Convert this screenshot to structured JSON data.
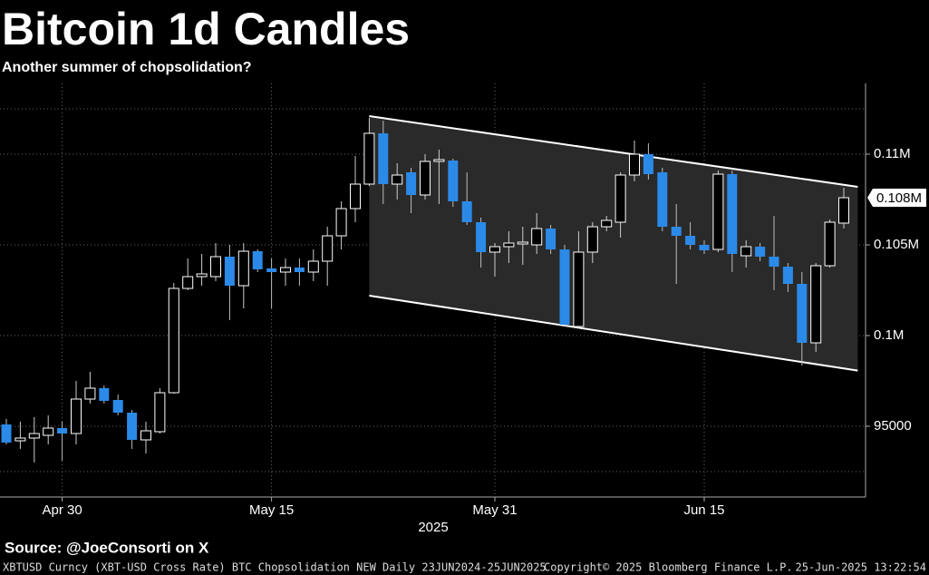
{
  "chart_data": {
    "type": "candlestick",
    "title": "Bitcoin 1d Candles",
    "subtitle": "Another summer of chopsolidation?",
    "xlabel": "2025",
    "source": "Source: @JoeConsorti on X",
    "footnote": "XBTUSD Curncy (XBT-USD Cross Rate) BTC Chopsolidation NEW  Daily 23JUN2024-25JUN2025",
    "copyright": "Copyright© 2025 Bloomberg Finance L.P.",
    "timestamp": "25-Jun-2025 13:22:54",
    "up_color": "#000000",
    "down_color": "#2b8ae8",
    "x": [
      "2025-04-26",
      "2025-04-27",
      "2025-04-28",
      "2025-04-29",
      "2025-04-30",
      "2025-05-01",
      "2025-05-02",
      "2025-05-03",
      "2025-05-04",
      "2025-05-05",
      "2025-05-06",
      "2025-05-07",
      "2025-05-08",
      "2025-05-09",
      "2025-05-10",
      "2025-05-11",
      "2025-05-12",
      "2025-05-13",
      "2025-05-14",
      "2025-05-15",
      "2025-05-16",
      "2025-05-17",
      "2025-05-18",
      "2025-05-19",
      "2025-05-20",
      "2025-05-21",
      "2025-05-22",
      "2025-05-23",
      "2025-05-24",
      "2025-05-25",
      "2025-05-26",
      "2025-05-27",
      "2025-05-28",
      "2025-05-29",
      "2025-05-30",
      "2025-05-31",
      "2025-06-01",
      "2025-06-02",
      "2025-06-03",
      "2025-06-04",
      "2025-06-05",
      "2025-06-06",
      "2025-06-07",
      "2025-06-08",
      "2025-06-09",
      "2025-06-10",
      "2025-06-11",
      "2025-06-12",
      "2025-06-13",
      "2025-06-14",
      "2025-06-15",
      "2025-06-16",
      "2025-06-17",
      "2025-06-18",
      "2025-06-19",
      "2025-06-20",
      "2025-06-21",
      "2025-06-22",
      "2025-06-23",
      "2025-06-24",
      "2025-06-25"
    ],
    "open": [
      95100,
      94200,
      94350,
      94500,
      94900,
      94600,
      96500,
      97100,
      96450,
      95750,
      94250,
      94700,
      96850,
      102600,
      103250,
      103250,
      104350,
      102750,
      104650,
      103700,
      103500,
      103750,
      103500,
      104100,
      105500,
      107000,
      108350,
      111150,
      108350,
      109000,
      107750,
      109600,
      109650,
      107400,
      106250,
      104600,
      104900,
      105050,
      105000,
      105900,
      104750,
      100500,
      104600,
      106000,
      106250,
      108850,
      110000,
      109000,
      106000,
      105500,
      105000,
      104750,
      108900,
      104400,
      104900,
      104350,
      103800,
      102850,
      99600,
      103850,
      106200
    ],
    "high": [
      95400,
      95250,
      95500,
      95600,
      95250,
      97500,
      98000,
      97250,
      96750,
      95900,
      95250,
      97100,
      102900,
      104250,
      104500,
      105100,
      105000,
      105100,
      104750,
      104250,
      104250,
      104250,
      104750,
      106000,
      107400,
      109900,
      112000,
      111850,
      109500,
      109250,
      110000,
      110250,
      109750,
      109000,
      106500,
      105100,
      105750,
      106000,
      106750,
      106100,
      105000,
      105750,
      106250,
      106600,
      109000,
      110750,
      110600,
      109250,
      107250,
      106250,
      105250,
      109100,
      109100,
      105250,
      105100,
      106600,
      104000,
      103500,
      104000,
      106400,
      108150
    ],
    "low": [
      94000,
      93750,
      93000,
      94000,
      93100,
      94000,
      96250,
      96250,
      95600,
      93750,
      93500,
      94600,
      96800,
      102500,
      102750,
      103000,
      100850,
      101500,
      103500,
      101500,
      102750,
      102750,
      103000,
      102750,
      104750,
      106250,
      108250,
      107250,
      107500,
      106750,
      107500,
      107250,
      107100,
      106100,
      103750,
      103250,
      104000,
      103900,
      104500,
      104500,
      100500,
      100400,
      104000,
      105750,
      105400,
      108500,
      108600,
      105750,
      102850,
      104750,
      104500,
      104600,
      103500,
      103750,
      104100,
      102500,
      102400,
      98350,
      99100,
      103750,
      105900
    ],
    "close": [
      94100,
      94350,
      94600,
      94900,
      94600,
      96500,
      97100,
      96400,
      95750,
      94250,
      94750,
      96850,
      102600,
      103250,
      103400,
      104350,
      102750,
      104650,
      103650,
      103500,
      103750,
      103500,
      104100,
      105500,
      107000,
      108350,
      111150,
      108350,
      108850,
      107750,
      109600,
      109700,
      107400,
      106250,
      104600,
      104900,
      105100,
      105150,
      105900,
      104750,
      100600,
      104600,
      106000,
      106350,
      108850,
      110000,
      108900,
      106000,
      105500,
      105000,
      104700,
      108900,
      104500,
      104900,
      104350,
      103800,
      102850,
      99600,
      103850,
      106250,
      107600
    ],
    "channel": {
      "x": [
        "2025-05-22",
        "2025-06-26"
      ],
      "upper": [
        112100,
        108200
      ],
      "lower": [
        102200,
        98070
      ]
    },
    "last_price": {
      "value": 107600,
      "label": "0.108M"
    },
    "ylim": [
      91100,
      113900
    ],
    "yticks": [
      95000,
      {
        "value": 100000,
        "label": "0.1M"
      },
      {
        "value": 105000,
        "label": "0.105M"
      },
      {
        "value": 110000,
        "label": "0.11M"
      }
    ],
    "minor_grid": [
      92500,
      112500
    ],
    "xticks": [
      {
        "value": "2025-04-30",
        "label": "Apr 30"
      },
      {
        "value": "2025-05-15",
        "label": "May 15"
      },
      {
        "value": "2025-05-31",
        "label": "May 31"
      },
      {
        "value": "2025-06-15",
        "label": "Jun 15"
      }
    ],
    "grid": true
  }
}
